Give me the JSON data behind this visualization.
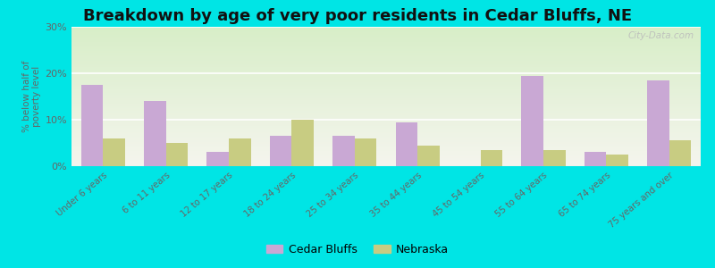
{
  "title": "Breakdown by age of very poor residents in Cedar Bluffs, NE",
  "ylabel": "% below half of\npoverty level",
  "categories": [
    "Under 6 years",
    "6 to 11 years",
    "12 to 17 years",
    "18 to 24 years",
    "25 to 34 years",
    "35 to 44 years",
    "45 to 54 years",
    "55 to 64 years",
    "65 to 74 years",
    "75 years and over"
  ],
  "cedar_bluffs": [
    17.5,
    14.0,
    3.0,
    6.5,
    6.5,
    9.5,
    0,
    19.5,
    3.0,
    18.5
  ],
  "nebraska": [
    6.0,
    5.0,
    6.0,
    10.0,
    6.0,
    4.5,
    3.5,
    3.5,
    2.5,
    5.5
  ],
  "cedar_color": "#c9a8d4",
  "nebraska_color": "#c8cc82",
  "bg_outer": "#00e5e5",
  "bg_plot_top": "#d8eec8",
  "bg_plot_bottom": "#f5f5ee",
  "ylim": [
    0,
    30
  ],
  "yticks": [
    0,
    10,
    20,
    30
  ],
  "ytick_labels": [
    "0%",
    "10%",
    "20%",
    "30%"
  ],
  "bar_width": 0.35,
  "title_fontsize": 13,
  "legend_labels": [
    "Cedar Bluffs",
    "Nebraska"
  ],
  "watermark": "City-Data.com"
}
